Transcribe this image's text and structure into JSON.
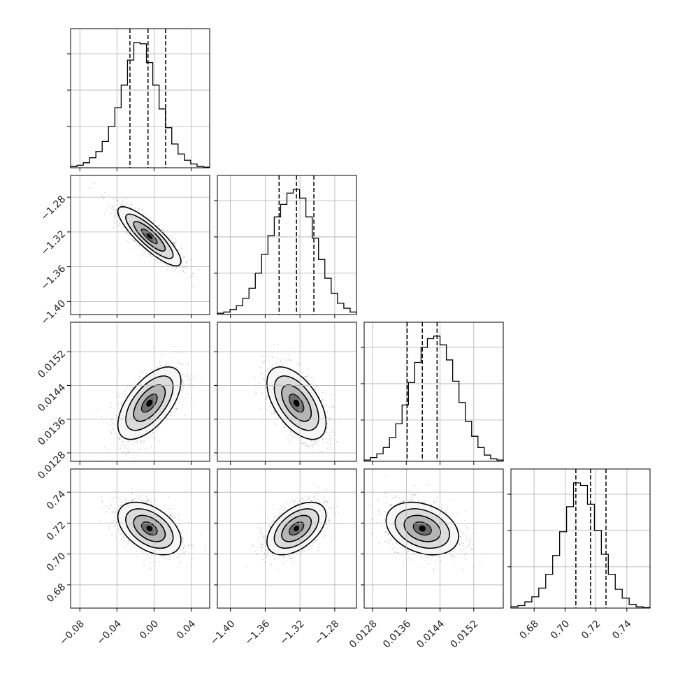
{
  "chart_data": {
    "type": "corner",
    "grid": true,
    "params": [
      {
        "range": [
          -0.09,
          0.06
        ],
        "ticks": [
          -0.08,
          -0.04,
          0.0,
          0.04
        ],
        "tick_labels": [
          "−0.08",
          "−0.04",
          "0.00",
          "0.04"
        ],
        "quantiles": [
          -0.026,
          -0.0065,
          0.0125
        ],
        "hist": [
          0.01,
          0.02,
          0.04,
          0.08,
          0.13,
          0.21,
          0.33,
          0.48,
          0.66,
          0.86,
          1.0,
          0.99,
          0.84,
          0.66,
          0.47,
          0.32,
          0.19,
          0.11,
          0.06,
          0.03,
          0.01,
          0.005
        ]
      },
      {
        "range": [
          -1.415,
          -1.255
        ],
        "ticks": [
          -1.4,
          -1.36,
          -1.32,
          -1.28
        ],
        "tick_labels": [
          "−1.40",
          "−1.36",
          "−1.32",
          "−1.28"
        ],
        "quantiles": [
          -1.344,
          -1.324,
          -1.304
        ],
        "hist": [
          0.01,
          0.02,
          0.04,
          0.07,
          0.13,
          0.21,
          0.33,
          0.48,
          0.63,
          0.78,
          0.88,
          0.97,
          1.0,
          0.93,
          0.78,
          0.61,
          0.44,
          0.29,
          0.17,
          0.09,
          0.05,
          0.02
        ]
      },
      {
        "range": [
          0.0126,
          0.0159
        ],
        "ticks": [
          0.0128,
          0.0136,
          0.0144,
          0.0152
        ],
        "tick_labels": [
          "0.0128",
          "0.0136",
          "0.0144",
          "0.0152"
        ],
        "quantiles": [
          0.01362,
          0.01398,
          0.01433
        ],
        "hist": [
          0.01,
          0.03,
          0.06,
          0.11,
          0.19,
          0.3,
          0.45,
          0.63,
          0.79,
          0.91,
          0.98,
          1.0,
          0.93,
          0.81,
          0.64,
          0.47,
          0.32,
          0.2,
          0.11,
          0.05,
          0.02,
          0.01
        ]
      },
      {
        "range": [
          0.665,
          0.755
        ],
        "ticks": [
          0.68,
          0.7,
          0.72,
          0.74
        ],
        "tick_labels": [
          "0.68",
          "0.70",
          "0.72",
          "0.74"
        ],
        "quantiles": [
          0.707,
          0.7165,
          0.7265
        ],
        "hist": [
          0.01,
          0.02,
          0.05,
          0.09,
          0.16,
          0.27,
          0.42,
          0.61,
          0.81,
          1.0,
          0.98,
          0.83,
          0.62,
          0.43,
          0.27,
          0.15,
          0.08,
          0.03,
          0.01,
          0.005
        ]
      }
    ],
    "pairs": [
      {
        "row": 1,
        "col": 0,
        "center": [
          -0.005,
          -1.325
        ],
        "sd": [
          0.017,
          0.017
        ],
        "corr": -0.85
      },
      {
        "row": 2,
        "col": 0,
        "center": [
          -0.005,
          0.01398
        ],
        "sd": [
          0.017,
          0.00043
        ],
        "corr": 0.6
      },
      {
        "row": 2,
        "col": 1,
        "center": [
          -1.324,
          0.01398
        ],
        "sd": [
          0.017,
          0.00043
        ],
        "corr": -0.55
      },
      {
        "row": 3,
        "col": 0,
        "center": [
          -0.005,
          0.7165
        ],
        "sd": [
          0.017,
          0.0085
        ],
        "corr": -0.45
      },
      {
        "row": 3,
        "col": 1,
        "center": [
          -1.324,
          0.7165
        ],
        "sd": [
          0.017,
          0.0085
        ],
        "corr": 0.5
      },
      {
        "row": 3,
        "col": 2,
        "center": [
          0.01398,
          0.7165
        ],
        "sd": [
          0.00043,
          0.0085
        ],
        "corr": -0.3
      }
    ]
  }
}
